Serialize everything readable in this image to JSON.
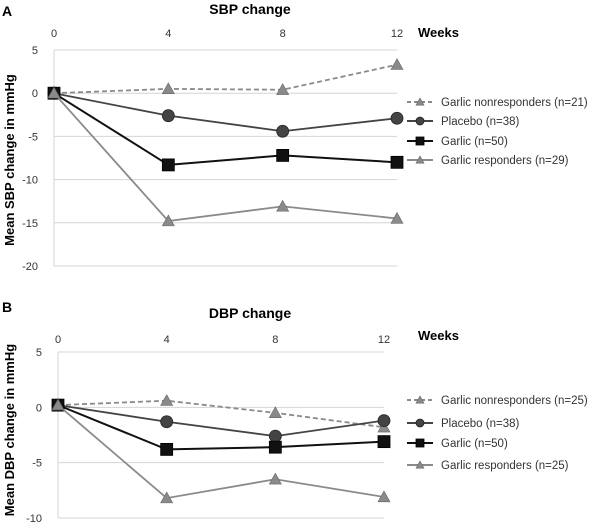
{
  "chart_data": [
    {
      "panel_label": "A",
      "type": "line",
      "title": "SBP change",
      "xlabel": "Weeks",
      "ylabel": "Mean SBP change in mmHg",
      "x": [
        0,
        4,
        8,
        12
      ],
      "x_ticks": [
        "0",
        "4",
        "8",
        "12"
      ],
      "x_axis_position": "top",
      "ylim": [
        -20,
        5
      ],
      "y_ticks": [
        "5",
        "0",
        "-5",
        "-10",
        "-15",
        "-20"
      ],
      "grid": true,
      "legend_position": "right",
      "series": [
        {
          "name": "Garlic nonresponders (n=21)",
          "values": [
            0,
            0.5,
            0.4,
            3.3
          ],
          "color": "#8a8a8a",
          "marker": "triangle",
          "dashed": true
        },
        {
          "name": "Placebo (n=38)",
          "values": [
            0,
            -2.6,
            -4.4,
            -2.9
          ],
          "color": "#444444",
          "marker": "circle",
          "dashed": false
        },
        {
          "name": "Garlic (n=50)",
          "values": [
            0,
            -8.3,
            -7.2,
            -8.0
          ],
          "color": "#111111",
          "marker": "square",
          "dashed": false
        },
        {
          "name": "Garlic responders (n=29)",
          "values": [
            0,
            -14.8,
            -13.1,
            -14.5
          ],
          "color": "#8a8a8a",
          "marker": "triangle",
          "dashed": false
        }
      ]
    },
    {
      "panel_label": "B",
      "type": "line",
      "title": "DBP change",
      "xlabel": "Weeks",
      "ylabel": "Mean DBP change in mmHg",
      "x": [
        0,
        4,
        8,
        12
      ],
      "x_ticks": [
        "0",
        "4",
        "8",
        "12"
      ],
      "x_axis_position": "top",
      "ylim": [
        -10,
        5
      ],
      "y_ticks": [
        "5",
        "0",
        "-5",
        "-10"
      ],
      "grid": true,
      "legend_position": "right",
      "series": [
        {
          "name": "Garlic nonresponders (n=25)",
          "values": [
            0.2,
            0.6,
            -0.5,
            -1.8
          ],
          "color": "#8a8a8a",
          "marker": "triangle",
          "dashed": true
        },
        {
          "name": "Placebo (n=38)",
          "values": [
            0.2,
            -1.3,
            -2.6,
            -1.2
          ],
          "color": "#444444",
          "marker": "circle",
          "dashed": false
        },
        {
          "name": "Garlic (n=50)",
          "values": [
            0.2,
            -3.8,
            -3.6,
            -3.1
          ],
          "color": "#111111",
          "marker": "square",
          "dashed": false
        },
        {
          "name": "Garlic responders (n=25)",
          "values": [
            0.2,
            -8.2,
            -6.5,
            -8.1
          ],
          "color": "#8a8a8a",
          "marker": "triangle",
          "dashed": false
        }
      ]
    }
  ]
}
